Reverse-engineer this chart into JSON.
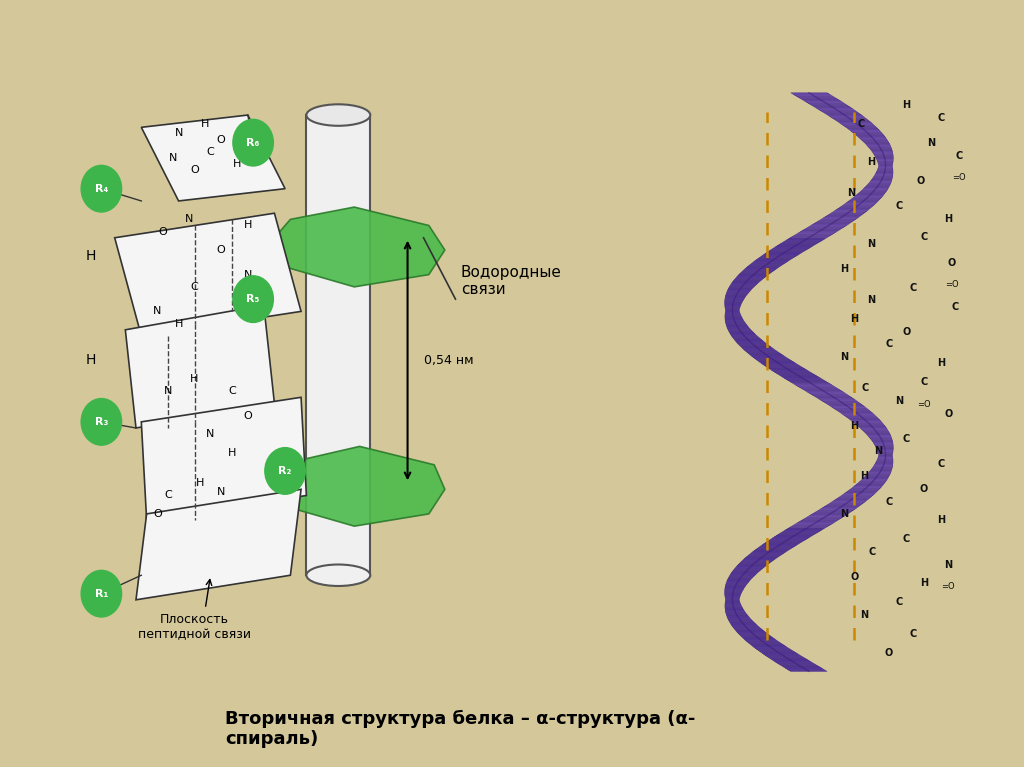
{
  "background_color": "#d4c89a",
  "white_panel_color": "#ffffff",
  "caption_text": "Вторичная структура белка – α-структура (α-\nспираль)",
  "caption_fontsize": 13,
  "right_panel_bg": "#dff0f5"
}
